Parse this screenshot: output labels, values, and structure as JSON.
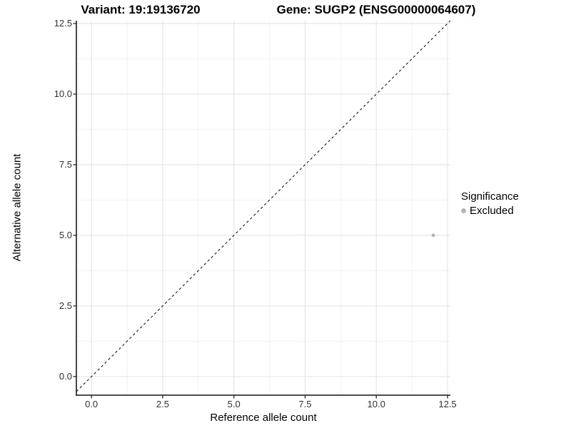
{
  "titles": {
    "variant": "Variant: 19:19136720",
    "gene": "Gene: SUGP2 (ENSG00000064607)"
  },
  "chart_data": {
    "type": "scatter",
    "xlabel": "Reference allele count",
    "ylabel": "Alternative allele count",
    "x_ticks": [
      0.0,
      2.5,
      5.0,
      7.5,
      10.0,
      12.5
    ],
    "y_ticks": [
      0.0,
      2.5,
      5.0,
      7.5,
      10.0,
      12.5
    ],
    "x_minor_ticks": [
      1.25,
      3.75,
      6.25,
      8.75,
      11.25
    ],
    "y_minor_ticks": [
      1.25,
      3.75,
      6.25,
      8.75,
      11.25
    ],
    "xlim": [
      -0.53,
      12.6
    ],
    "ylim": [
      -0.66,
      12.6
    ],
    "grid": true,
    "points": [
      {
        "x": 12,
        "y": 5,
        "series": "Excluded"
      }
    ],
    "reference_line": {
      "slope": 1,
      "intercept": 0,
      "style": "dashed"
    },
    "legend": {
      "title": "Significance",
      "position": "right",
      "entries": [
        {
          "label": "Excluded",
          "color": "#b4b4b4"
        }
      ]
    },
    "colors": {
      "point": "#b4b4b4",
      "grid_major": "#e3e3e3",
      "grid_minor": "#f0f0f0",
      "axis_line": "#333333",
      "tick_mark": "#333333",
      "tick_label": "#303030",
      "reference_line": "#000000",
      "background": "#ffffff"
    }
  }
}
